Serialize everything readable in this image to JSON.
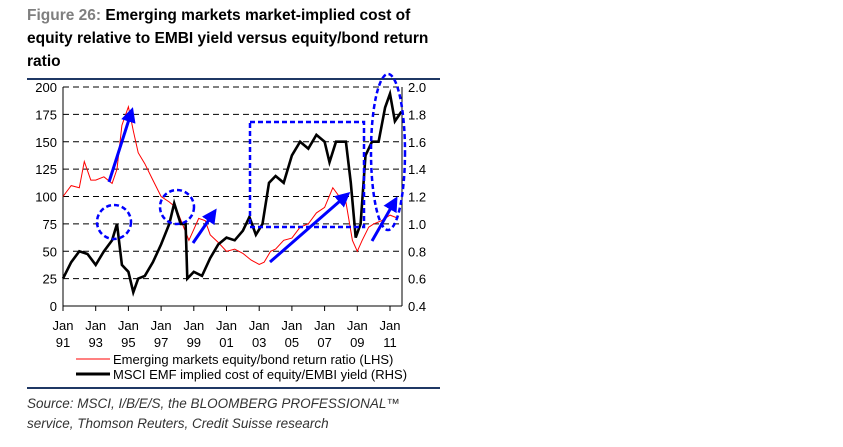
{
  "figure_label": "Figure 26:",
  "title_text": "Emerging markets market-implied cost of equity relative to EMBI yield versus equity/bond return ratio",
  "source": "Source: MSCI, I/B/E/S, the BLOOMBERG PROFESSIONAL™ service, Thomson Reuters, Credit Suisse research",
  "chart_data": {
    "type": "line",
    "title": "Emerging markets market-implied cost of equity relative to EMBI yield versus equity/bond return ratio",
    "x_tick_labels": [
      [
        "Jan",
        "91"
      ],
      [
        "Jan",
        "93"
      ],
      [
        "Jan",
        "95"
      ],
      [
        "Jan",
        "97"
      ],
      [
        "Jan",
        "99"
      ],
      [
        "Jan",
        "01"
      ],
      [
        "Jan",
        "03"
      ],
      [
        "Jan",
        "05"
      ],
      [
        "Jan",
        "07"
      ],
      [
        "Jan",
        "09"
      ],
      [
        "Jan",
        "11"
      ]
    ],
    "x_ticks": [
      1991,
      1993,
      1995,
      1997,
      1999,
      2001,
      2003,
      2005,
      2007,
      2009,
      2011
    ],
    "xlim": [
      1991,
      2012.1
    ],
    "ylim_left": [
      0,
      200
    ],
    "yticks_left": [
      "0",
      "25",
      "50",
      "75",
      "100",
      "125",
      "150",
      "175",
      "200"
    ],
    "ylim_right": [
      0.4,
      2.0
    ],
    "yticks_right": [
      "0.4",
      "0.6",
      "0.8",
      "1.0",
      "1.2",
      "1.4",
      "1.6",
      "1.8",
      "2.0"
    ],
    "grid": "horizontal dashed",
    "legend_placement": "bottom",
    "series": [
      {
        "name": "Emerging markets equity/bond return ratio (LHS)",
        "axis": "left",
        "color": "#ff0000",
        "x": [
          1991,
          1991.5,
          1992,
          1992.3,
          1992.7,
          1993,
          1993.5,
          1994,
          1994.3,
          1994.6,
          1995,
          1995.3,
          1995.6,
          1996,
          1996.5,
          1997,
          1997.5,
          1997.9,
          1998.3,
          1998.7,
          1999,
          1999.3,
          1999.7,
          2000,
          2000.5,
          2001,
          2001.5,
          2002,
          2002.5,
          2003,
          2003.3,
          2003.7,
          2004,
          2004.5,
          2005,
          2005.5,
          2006,
          2006.5,
          2007,
          2007.5,
          2007.9,
          2008.3,
          2008.7,
          2009,
          2009.3,
          2009.7,
          2010,
          2010.5,
          2011,
          2011.5
        ],
        "values": [
          100,
          110,
          108,
          132,
          115,
          115,
          118,
          112,
          125,
          165,
          182,
          160,
          140,
          130,
          115,
          100,
          95,
          90,
          75,
          60,
          70,
          80,
          78,
          65,
          58,
          50,
          52,
          48,
          42,
          38,
          40,
          50,
          52,
          60,
          62,
          72,
          75,
          85,
          90,
          108,
          100,
          95,
          60,
          50,
          60,
          72,
          75,
          78,
          83,
          80
        ]
      },
      {
        "name": "MSCI EMF implied cost of equity/EMBI yield (RHS)",
        "axis": "right",
        "color": "#000000",
        "x": [
          1991,
          1991.5,
          1992,
          1992.5,
          1993,
          1993.5,
          1994,
          1994.3,
          1994.6,
          1995,
          1995.3,
          1995.6,
          1996,
          1996.5,
          1997,
          1997.5,
          1997.8,
          1998.2,
          1998.5,
          1998.6,
          1999,
          1999.5,
          2000,
          2000.5,
          2001,
          2001.5,
          2002,
          2002.4,
          2002.8,
          2003.2,
          2003.6,
          2004,
          2004.5,
          2005,
          2005.5,
          2006,
          2006.5,
          2007,
          2007.3,
          2007.7,
          2008.3,
          2008.6,
          2008.9,
          2009.2,
          2009.5,
          2009.9,
          2010.3,
          2010.7,
          2011,
          2011.3,
          2011.7
        ],
        "values": [
          0.6,
          0.72,
          0.8,
          0.78,
          0.7,
          0.8,
          0.88,
          1.0,
          0.7,
          0.65,
          0.5,
          0.6,
          0.62,
          0.72,
          0.85,
          1.0,
          1.15,
          1.0,
          1.0,
          0.6,
          0.65,
          0.62,
          0.75,
          0.85,
          0.9,
          0.88,
          0.95,
          1.05,
          0.92,
          1.0,
          1.3,
          1.35,
          1.3,
          1.5,
          1.6,
          1.55,
          1.65,
          1.6,
          1.45,
          1.6,
          1.6,
          1.3,
          0.9,
          1.0,
          1.5,
          1.6,
          1.6,
          1.85,
          1.95,
          1.75,
          1.82
        ]
      }
    ]
  }
}
